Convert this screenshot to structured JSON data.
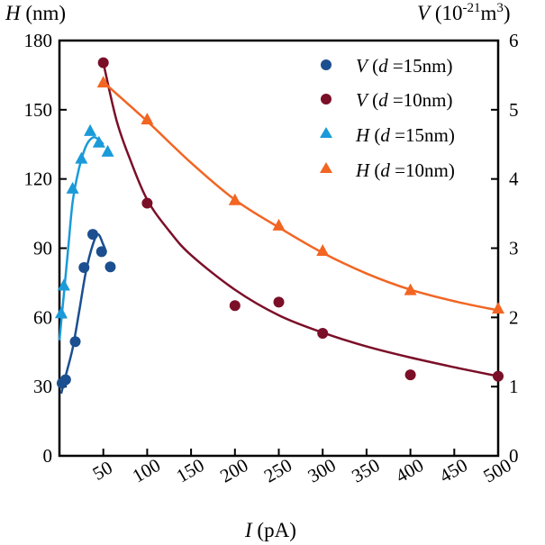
{
  "chart_data": {
    "type": "scatter",
    "x_axis": {
      "label_symbol": "I",
      "label_unit": " (pA)",
      "range": [
        0,
        500
      ],
      "ticks": [
        50,
        100,
        150,
        200,
        250,
        300,
        350,
        400,
        450,
        500
      ]
    },
    "y_left": {
      "label_symbol": "H",
      "label_unit": " (nm)",
      "range": [
        0,
        180
      ],
      "ticks": [
        0,
        30,
        60,
        90,
        120,
        150,
        180
      ]
    },
    "y_right": {
      "label_symbol": "V",
      "label_unit_prefix": " (10",
      "label_unit_exp": "-21",
      "label_unit_mid": "m",
      "label_unit_exp2": "3",
      "label_unit_suffix": ")",
      "range": [
        0,
        6
      ],
      "ticks": [
        0,
        1,
        2,
        3,
        4,
        5,
        6
      ]
    },
    "series": [
      {
        "name": "V (d =15nm)",
        "legend_symbol": "V",
        "legend_d": "d",
        "legend_value": " =15nm)",
        "marker": "circle",
        "color": "#1b4f8f",
        "axis": "right",
        "points": [
          [
            3,
            1.05
          ],
          [
            7,
            1.1
          ],
          [
            18,
            1.65
          ],
          [
            28,
            2.72
          ],
          [
            38,
            3.2
          ],
          [
            48,
            2.95
          ],
          [
            58,
            2.73
          ]
        ],
        "fit": [
          [
            2,
            0.9
          ],
          [
            8,
            1.2
          ],
          [
            15,
            1.55
          ],
          [
            22,
            2.05
          ],
          [
            30,
            2.65
          ],
          [
            38,
            3.05
          ],
          [
            44,
            3.2
          ],
          [
            50,
            3.05
          ],
          [
            53,
            2.95
          ]
        ]
      },
      {
        "name": "V (d =10nm)",
        "legend_symbol": "V",
        "legend_d": "d",
        "legend_value": " =10nm)",
        "marker": "circle",
        "color": "#7b0f28",
        "axis": "right",
        "points": [
          [
            50,
            5.68
          ],
          [
            100,
            3.65
          ],
          [
            200,
            2.17
          ],
          [
            250,
            2.22
          ],
          [
            300,
            1.77
          ],
          [
            400,
            1.17
          ],
          [
            500,
            1.15
          ]
        ],
        "fit": [
          [
            50,
            5.68
          ],
          [
            65,
            4.85
          ],
          [
            80,
            4.3
          ],
          [
            100,
            3.7
          ],
          [
            125,
            3.25
          ],
          [
            150,
            2.9
          ],
          [
            200,
            2.4
          ],
          [
            250,
            2.03
          ],
          [
            300,
            1.78
          ],
          [
            350,
            1.58
          ],
          [
            400,
            1.42
          ],
          [
            450,
            1.28
          ],
          [
            500,
            1.15
          ]
        ]
      },
      {
        "name": "H (d =15nm)",
        "legend_symbol": "H",
        "legend_d": "d",
        "legend_value": " =15nm)",
        "marker": "triangle",
        "color": "#1a9ad9",
        "axis": "left",
        "points": [
          [
            2,
            62
          ],
          [
            5,
            74
          ],
          [
            15,
            116
          ],
          [
            25,
            129
          ],
          [
            35,
            141
          ],
          [
            45,
            136
          ],
          [
            55,
            132
          ]
        ],
        "fit": [
          [
            0,
            50
          ],
          [
            5,
            70
          ],
          [
            10,
            90
          ],
          [
            15,
            110
          ],
          [
            22,
            124
          ],
          [
            30,
            134
          ],
          [
            38,
            138
          ],
          [
            45,
            137
          ],
          [
            50,
            135
          ]
        ]
      },
      {
        "name": "H (d =10nm)",
        "legend_symbol": "H",
        "legend_d": "d",
        "legend_value": " =10nm)",
        "marker": "triangle",
        "color": "#f26522",
        "axis": "left",
        "points": [
          [
            50,
            162
          ],
          [
            100,
            146
          ],
          [
            200,
            111
          ],
          [
            250,
            100
          ],
          [
            300,
            89
          ],
          [
            400,
            72
          ],
          [
            500,
            64
          ]
        ],
        "fit": [
          [
            50,
            162
          ],
          [
            100,
            145
          ],
          [
            150,
            127
          ],
          [
            200,
            111
          ],
          [
            250,
            99
          ],
          [
            300,
            88
          ],
          [
            350,
            79
          ],
          [
            400,
            72
          ],
          [
            450,
            67
          ],
          [
            500,
            63
          ]
        ]
      }
    ],
    "legend_position": "top-right"
  }
}
